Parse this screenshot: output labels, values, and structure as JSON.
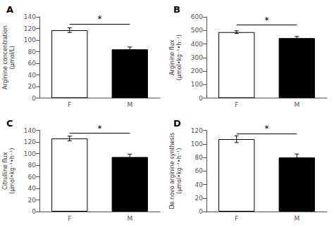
{
  "chart_data": [
    {
      "type": "bar",
      "title": "A",
      "ylabel": "Arginine concentration\n(μmol/L)",
      "categories": [
        "F",
        "M"
      ],
      "values": [
        117,
        84
      ],
      "errors": [
        4,
        4
      ],
      "colors": [
        "white",
        "black"
      ],
      "ylim": [
        0,
        140
      ],
      "yticks": [
        0,
        20,
        40,
        60,
        80,
        100,
        120,
        140
      ],
      "grid": false,
      "annotations": [
        {
          "text": "*",
          "y": 128
        }
      ]
    },
    {
      "type": "bar",
      "title": "B",
      "ylabel": "Arginine flux\n(μmol•kg⁻¹•h⁻¹)",
      "categories": [
        "F",
        "M"
      ],
      "values": [
        487,
        443
      ],
      "errors": [
        10,
        12
      ],
      "colors": [
        "white",
        "black"
      ],
      "ylim": [
        0,
        600
      ],
      "yticks": [
        0,
        100,
        200,
        300,
        400,
        500,
        600
      ],
      "grid": false,
      "annotations": [
        {
          "text": "*",
          "y": 540
        }
      ]
    },
    {
      "type": "bar",
      "title": "C",
      "ylabel": "Citrulline flux\n(μmol•kg⁻¹•h⁻¹)",
      "categories": [
        "F",
        "M"
      ],
      "values": [
        126,
        94
      ],
      "errors": [
        4,
        5
      ],
      "colors": [
        "white",
        "black"
      ],
      "ylim": [
        0,
        140
      ],
      "yticks": [
        0,
        20,
        40,
        60,
        80,
        100,
        120,
        140
      ],
      "grid": false,
      "annotations": [
        {
          "text": "*",
          "y": 135
        }
      ]
    },
    {
      "type": "bar",
      "title": "D",
      "ylabel": "De novo arginine synthesis\n(μmol•kg⁻¹•h⁻¹)",
      "categories": [
        "F",
        "M"
      ],
      "values": [
        107,
        80
      ],
      "errors": [
        5,
        5
      ],
      "colors": [
        "white",
        "black"
      ],
      "ylim": [
        0,
        120
      ],
      "yticks": [
        0,
        20,
        40,
        60,
        80,
        100,
        120
      ],
      "grid": false,
      "annotations": [
        {
          "text": "*",
          "y": 115
        }
      ]
    }
  ]
}
